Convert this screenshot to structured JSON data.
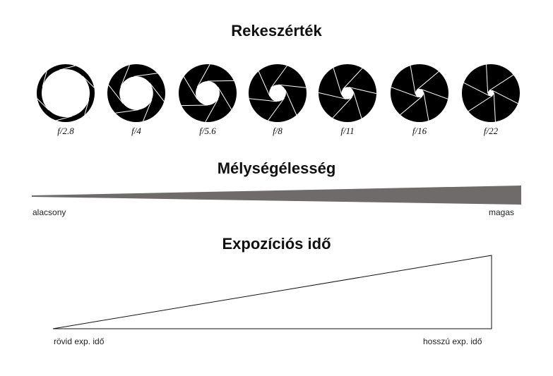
{
  "aperture_section": {
    "title": "Rekeszérték",
    "stops": [
      {
        "label": "f/2.8",
        "f": 2.8
      },
      {
        "label": "f/4",
        "f": 4
      },
      {
        "label": "f/5.6",
        "f": 5.6
      },
      {
        "label": "f/8",
        "f": 8
      },
      {
        "label": "f/11",
        "f": 11
      },
      {
        "label": "f/16",
        "f": 16
      },
      {
        "label": "f/22",
        "f": 22
      }
    ]
  },
  "depth_of_field": {
    "title": "Mélységélesség",
    "low_label": "alacsony",
    "high_label": "magas"
  },
  "exposure": {
    "title": "Expozíciós idő",
    "short_label": "rövid exp. idő",
    "long_label": "hosszú exp. idő"
  }
}
